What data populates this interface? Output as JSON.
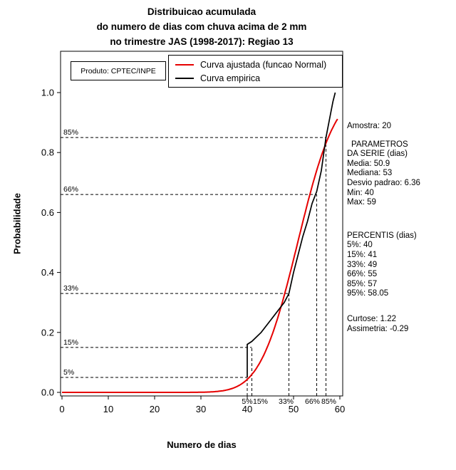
{
  "title_lines": [
    "Distribuicao acumulada",
    "do numero de dias com chuva acima de 2 mm",
    "no trimestre JAS (1998-2017): Regiao 13"
  ],
  "product_label": "Produto: CPTEC/INPE",
  "legend": [
    {
      "label": "Curva ajustada (funcao Normal)",
      "color": "#e60000"
    },
    {
      "label": "Curva empirica",
      "color": "#000000"
    }
  ],
  "axes": {
    "xlabel": "Numero de dias",
    "ylabel": "Probabilidade",
    "x_ticks": [
      0,
      10,
      20,
      30,
      40,
      50,
      60
    ],
    "y_ticks": [
      "0.0",
      "0.2",
      "0.4",
      "0.6",
      "0.8",
      "1.0"
    ],
    "xlim": [
      0,
      60
    ],
    "ylim": [
      0,
      1
    ]
  },
  "chart_data": {
    "type": "line",
    "title": "Distribuicao acumulada do numero de dias com chuva acima de 2 mm no trimestre JAS (1998-2017): Regiao 13",
    "xlabel": "Numero de dias",
    "ylabel": "Probabilidade",
    "xlim": [
      0,
      60
    ],
    "ylim": [
      0,
      1
    ],
    "grid": false,
    "legend_position": "top-right-inside",
    "series": [
      {
        "name": "Curva ajustada (funcao Normal)",
        "model": "normal_cdf",
        "mean": 50.9,
        "sd": 6.36,
        "x_range": [
          0,
          59.5
        ],
        "color": "#e60000"
      },
      {
        "name": "Curva empirica",
        "color": "#000000",
        "points": [
          [
            40,
            0.05
          ],
          [
            40,
            0.16
          ],
          [
            41,
            0.17
          ],
          [
            43,
            0.2
          ],
          [
            45,
            0.24
          ],
          [
            47,
            0.28
          ],
          [
            48,
            0.3
          ],
          [
            49,
            0.33
          ],
          [
            50,
            0.4
          ],
          [
            51,
            0.46
          ],
          [
            52,
            0.52
          ],
          [
            53,
            0.57
          ],
          [
            54,
            0.63
          ],
          [
            55,
            0.67
          ],
          [
            56,
            0.74
          ],
          [
            57,
            0.85
          ],
          [
            58,
            0.93
          ],
          [
            58.5,
            0.97
          ],
          [
            59,
            1.0
          ]
        ]
      }
    ],
    "percentiles": [
      {
        "label": "5%",
        "p": 0.05,
        "x": 40
      },
      {
        "label": "15%",
        "p": 0.15,
        "x": 41
      },
      {
        "label": "33%",
        "p": 0.33,
        "x": 49
      },
      {
        "label": "66%",
        "p": 0.66,
        "x": 55
      },
      {
        "label": "85%",
        "p": 0.85,
        "x": 57
      }
    ],
    "summary": {
      "amostra": 20,
      "media": 50.9,
      "mediana": 53,
      "desvio_padrao": 6.36,
      "min": 40,
      "max": 59,
      "p95": 58.05,
      "curtose": 1.22,
      "assimetria": -0.29
    }
  },
  "stats": {
    "amostra": "Amostra: 20",
    "header1": "PARAMETROS",
    "header2": "DA SERIE (dias)",
    "media": "Media: 50.9",
    "mediana": "Mediana: 53",
    "desvio": "Desvio padrao: 6.36",
    "min": "Min: 40",
    "max": "Max: 59",
    "percentis_header": "PERCENTIS (dias)",
    "p5": "5%: 40",
    "p15": "15%: 41",
    "p33": "33%: 49",
    "p66": "66%: 55",
    "p85": "85%: 57",
    "p95": "95%: 58.05",
    "curtose": "Curtose: 1.22",
    "assimetria": "Assimetria: -0.29"
  }
}
